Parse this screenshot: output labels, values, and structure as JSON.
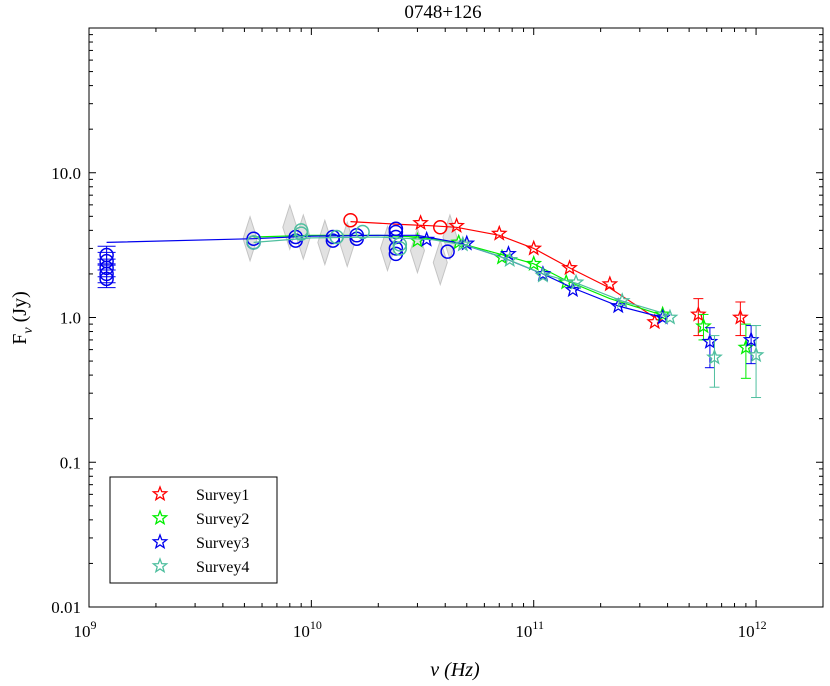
{
  "chart_data": {
    "type": "scatter",
    "title": "0748+126",
    "xlabel": "ν (Hz)",
    "ylabel": "Fν (Jy)",
    "xscale": "log",
    "yscale": "log",
    "xlim": [
      1000000000.0,
      2000000000000.0
    ],
    "ylim": [
      0.01,
      100
    ],
    "x_ticks": [
      {
        "value": 1000000000.0,
        "base": "10",
        "exp": "9"
      },
      {
        "value": 10000000000.0,
        "base": "10",
        "exp": "10"
      },
      {
        "value": 100000000000.0,
        "base": "10",
        "exp": "11"
      },
      {
        "value": 1000000000000.0,
        "base": "10",
        "exp": "12"
      }
    ],
    "y_ticks": [
      {
        "value": 0.01,
        "label": "0.01"
      },
      {
        "value": 0.1,
        "label": "0.1"
      },
      {
        "value": 1,
        "label": "1.0"
      },
      {
        "value": 10,
        "label": "10.0"
      }
    ],
    "legend_position": "bottom-left",
    "legend": [
      {
        "name": "Survey1",
        "color": "#ff0000"
      },
      {
        "name": "Survey2",
        "color": "#00ee00"
      },
      {
        "name": "Survey3",
        "color": "#0000ee"
      },
      {
        "name": "Survey4",
        "color": "#4fbf9f"
      }
    ],
    "series": [
      {
        "name": "Survey1",
        "color": "#ff0000",
        "fit_x": [
          15000000000.0,
          25000000000.0,
          35000000000.0,
          45000000000.0,
          70000000000.0,
          100000000000.0,
          145000000000.0,
          220000000000.0,
          350000000000.0
        ],
        "fit_y": [
          4.6,
          4.4,
          4.3,
          4.2,
          3.7,
          3.0,
          2.2,
          1.6,
          1.0
        ],
        "stars": [
          [
            31000000000.0,
            4.5
          ],
          [
            45000000000.0,
            4.3
          ],
          [
            70000000000.0,
            3.8
          ],
          [
            100000000000.0,
            3.0
          ],
          [
            145000000000.0,
            2.2
          ],
          [
            220000000000.0,
            1.7
          ],
          [
            350000000000.0,
            0.93
          ]
        ],
        "star_err": [
          [
            550000000000.0,
            1.05,
            0.75,
            1.35
          ],
          [
            850000000000.0,
            1.0,
            0.75,
            1.28
          ]
        ],
        "circles": [
          [
            15000000000.0,
            4.7
          ],
          [
            38000000000.0,
            4.2
          ]
        ]
      },
      {
        "name": "Survey2",
        "color": "#00ee00",
        "fit_x": [
          5500000000.0,
          10000000000.0,
          20000000000.0,
          30000000000.0,
          45000000000.0,
          70000000000.0,
          100000000000.0,
          140000000000.0,
          220000000000.0,
          370000000000.0
        ],
        "fit_y": [
          3.6,
          3.7,
          3.7,
          3.6,
          3.3,
          2.75,
          2.35,
          1.8,
          1.35,
          1.05
        ],
        "stars": [
          [
            30000000000.0,
            3.4
          ],
          [
            46000000000.0,
            3.3
          ],
          [
            72000000000.0,
            2.6
          ],
          [
            100000000000.0,
            2.35
          ],
          [
            140000000000.0,
            1.75
          ],
          [
            380000000000.0,
            1.05
          ]
        ],
        "star_err": [
          [
            580000000000.0,
            0.87,
            0.7,
            1.05
          ],
          [
            900000000000.0,
            0.62,
            0.38,
            0.9
          ]
        ],
        "circles": []
      },
      {
        "name": "Survey3",
        "color": "#0000ee",
        "fit_x": [
          1200000000.0,
          5500000000.0,
          10000000000.0,
          20000000000.0,
          30000000000.0,
          45000000000.0,
          70000000000.0,
          110000000000.0,
          150000000000.0,
          240000000000.0,
          380000000000.0
        ],
        "fit_y": [
          3.3,
          3.5,
          3.65,
          3.7,
          3.7,
          3.3,
          2.65,
          2.0,
          1.6,
          1.2,
          1.0
        ],
        "stars": [
          [
            33000000000.0,
            3.45
          ],
          [
            50000000000.0,
            3.25
          ],
          [
            77000000000.0,
            2.75
          ],
          [
            110000000000.0,
            2.0
          ],
          [
            150000000000.0,
            1.55
          ],
          [
            240000000000.0,
            1.2
          ],
          [
            380000000000.0,
            1.0
          ]
        ],
        "star_err": [
          [
            620000000000.0,
            0.68,
            0.45,
            0.85
          ],
          [
            950000000000.0,
            0.7,
            0.48,
            0.88
          ]
        ],
        "circles": [
          [
            1200000000.0,
            2.7
          ],
          [
            1200000000.0,
            2.45
          ],
          [
            1200000000.0,
            2.2
          ],
          [
            1200000000.0,
            2.0
          ],
          [
            1200000000.0,
            1.85
          ],
          [
            5500000000.0,
            3.5
          ],
          [
            5500000000.0,
            3.3
          ],
          [
            8500000000.0,
            3.6
          ],
          [
            8500000000.0,
            3.4
          ],
          [
            12500000000.0,
            3.6
          ],
          [
            12500000000.0,
            3.4
          ],
          [
            16000000000.0,
            3.7
          ],
          [
            16000000000.0,
            3.5
          ],
          [
            24000000000.0,
            4.1
          ],
          [
            24000000000.0,
            3.9
          ],
          [
            24000000000.0,
            3.6
          ],
          [
            24000000000.0,
            3.0
          ],
          [
            24000000000.0,
            2.75
          ],
          [
            41000000000.0,
            2.85
          ]
        ]
      },
      {
        "name": "Survey4",
        "color": "#4fbf9f",
        "fit_x": [
          5500000000.0,
          10000000000.0,
          20000000000.0,
          35000000000.0,
          50000000000.0,
          75000000000.0,
          110000000000.0,
          160000000000.0,
          250000000000.0,
          400000000000.0
        ],
        "fit_y": [
          3.3,
          3.55,
          3.6,
          3.45,
          3.15,
          2.55,
          2.0,
          1.7,
          1.3,
          1.05
        ],
        "stars": [
          [
            48000000000.0,
            3.2
          ],
          [
            78000000000.0,
            2.5
          ],
          [
            110000000000.0,
            1.95
          ],
          [
            155000000000.0,
            1.75
          ],
          [
            250000000000.0,
            1.3
          ],
          [
            410000000000.0,
            1.0
          ]
        ],
        "star_err": [
          [
            650000000000.0,
            0.53,
            0.33,
            0.75
          ],
          [
            1000000000000.0,
            0.55,
            0.28,
            0.88
          ]
        ],
        "circles": [
          [
            5500000000.0,
            3.3
          ],
          [
            9000000000.0,
            4.0
          ],
          [
            9000000000.0,
            3.8
          ],
          [
            13000000000.0,
            3.6
          ],
          [
            17000000000.0,
            3.9
          ],
          [
            25000000000.0,
            3.2
          ],
          [
            25000000000.0,
            3.0
          ]
        ]
      }
    ],
    "gray_markers": [
      [
        5300000000.0,
        3.5
      ],
      [
        8000000000.0,
        4.2
      ],
      [
        9200000000.0,
        3.6
      ],
      [
        11500000000.0,
        3.3
      ],
      [
        14500000000.0,
        3.2
      ],
      [
        22000000000.0,
        3.0
      ],
      [
        30000000000.0,
        2.9
      ],
      [
        38000000000.0,
        2.4
      ],
      [
        42000000000.0,
        3.6
      ]
    ]
  }
}
